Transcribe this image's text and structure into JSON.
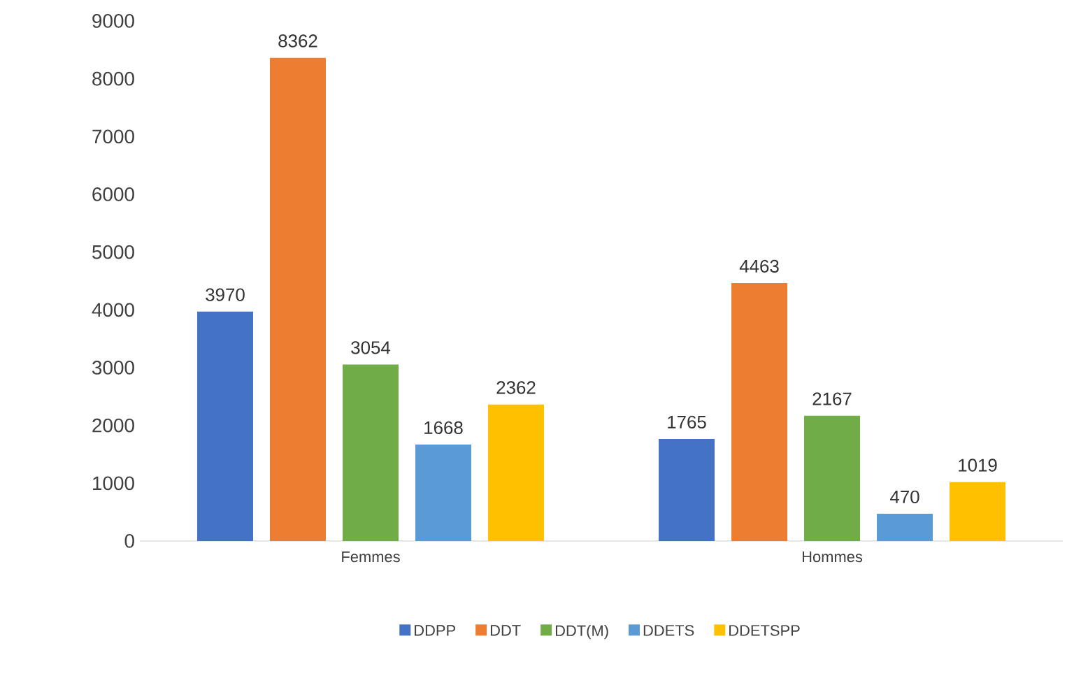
{
  "chart_data": {
    "type": "bar",
    "categories": [
      "Femmes",
      "Hommes"
    ],
    "series": [
      {
        "name": "DDPP",
        "color": "#4472c4",
        "values": [
          3970,
          1765
        ]
      },
      {
        "name": "DDT",
        "color": "#ed7d31",
        "values": [
          8362,
          4463
        ]
      },
      {
        "name": "DDT(M)",
        "color": "#70ad47",
        "values": [
          3054,
          2167
        ]
      },
      {
        "name": "DDETS",
        "color": "#5b9bd5",
        "values": [
          1668,
          470
        ]
      },
      {
        "name": "DDETSPP",
        "color": "#ffc000",
        "values": [
          2362,
          1019
        ]
      }
    ],
    "ylim": [
      0,
      9000
    ],
    "yticks": [
      0,
      1000,
      2000,
      3000,
      4000,
      5000,
      6000,
      7000,
      8000,
      9000
    ],
    "data_labels": true,
    "legend": "bottom",
    "grid": false
  }
}
